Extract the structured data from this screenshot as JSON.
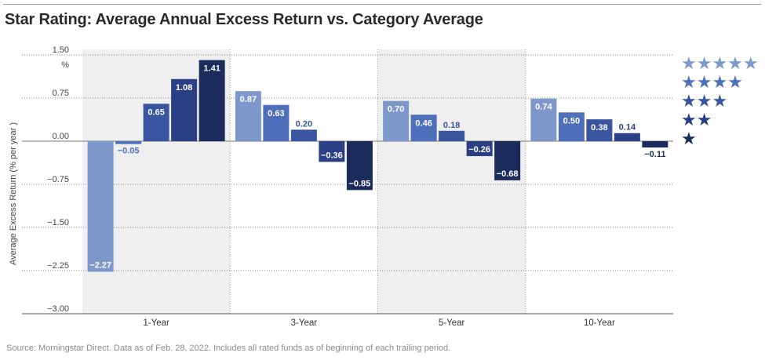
{
  "title": "Star Rating: Average Annual Excess Return vs. Category Average",
  "source": "Source: Morningstar Direct. Data as of Feb. 28, 2022. Includes all rated funds as of beginning of each trailing period.",
  "colors": {
    "five_star": "#7f98cc",
    "four_star": "#4e6fb9",
    "three_star": "#3a55a0",
    "two_star": "#2b3f84",
    "one_star": "#1b2b5c",
    "panel_shade": "#efefef"
  },
  "chart_data": {
    "type": "bar",
    "title": "Star Rating: Average Annual Excess Return vs. Category Average",
    "ylabel": "Average Excess Return (% per year )",
    "yunit_label": "%",
    "ylim": [
      -3.0,
      1.5
    ],
    "yticks": [
      1.5,
      0.75,
      0.0,
      -0.75,
      -1.5,
      -2.25,
      -3.0
    ],
    "ytick_labels": [
      "1.50",
      "0.75",
      "0.00",
      "−0.75",
      "−1.50",
      "−2.25",
      "−3.00"
    ],
    "grid": "horizontal dotted",
    "legend_position": "right",
    "categories": [
      "1-Year",
      "3-Year",
      "5-Year",
      "10-Year"
    ],
    "series": [
      {
        "name": "★★★★★",
        "values": [
          -2.27,
          0.87,
          0.7,
          0.74
        ],
        "labels": [
          "−2.27",
          "0.87",
          "0.70",
          "0.74"
        ]
      },
      {
        "name": "★★★★",
        "values": [
          -0.05,
          0.63,
          0.46,
          0.5
        ],
        "labels": [
          "−0.05",
          "0.63",
          "0.46",
          "0.50"
        ]
      },
      {
        "name": "★★★",
        "values": [
          0.65,
          0.2,
          0.18,
          0.38
        ],
        "labels": [
          "0.65",
          "0.20",
          "0.18",
          "0.38"
        ]
      },
      {
        "name": "★★",
        "values": [
          1.08,
          -0.36,
          -0.26,
          0.14
        ],
        "labels": [
          "1.08",
          "−0.36",
          "−0.26",
          "0.14"
        ]
      },
      {
        "name": "★",
        "values": [
          1.41,
          -0.85,
          -0.68,
          -0.11
        ],
        "labels": [
          "1.41",
          "−0.85",
          "−0.68",
          "−0.11"
        ]
      }
    ]
  }
}
